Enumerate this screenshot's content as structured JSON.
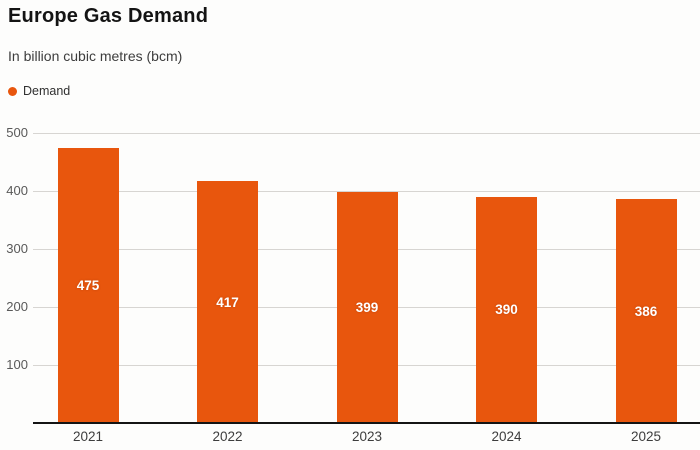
{
  "header": {
    "title": "Europe Gas Demand",
    "subtitle": "In billion cubic metres (bcm)"
  },
  "legend": {
    "label": "Demand",
    "marker_color": "#e8560d"
  },
  "chart_data": {
    "type": "bar",
    "title": "Europe Gas Demand",
    "subtitle": "In billion cubic metres (bcm)",
    "categories": [
      "2021",
      "2022",
      "2023",
      "2024",
      "2025"
    ],
    "series": [
      {
        "name": "Demand",
        "values": [
          475,
          417,
          399,
          390,
          386
        ]
      }
    ],
    "xlabel": "",
    "ylabel": "",
    "ylim": [
      0,
      500
    ],
    "yticks": [
      100,
      200,
      300,
      400,
      500
    ],
    "grid": true,
    "legend_position": "top-left",
    "bar_color": "#e8560d",
    "value_label_color": "#ffffff",
    "gridline_color": "#d7d5d2",
    "axis_line_color": "#141414",
    "show_value_labels": true
  }
}
